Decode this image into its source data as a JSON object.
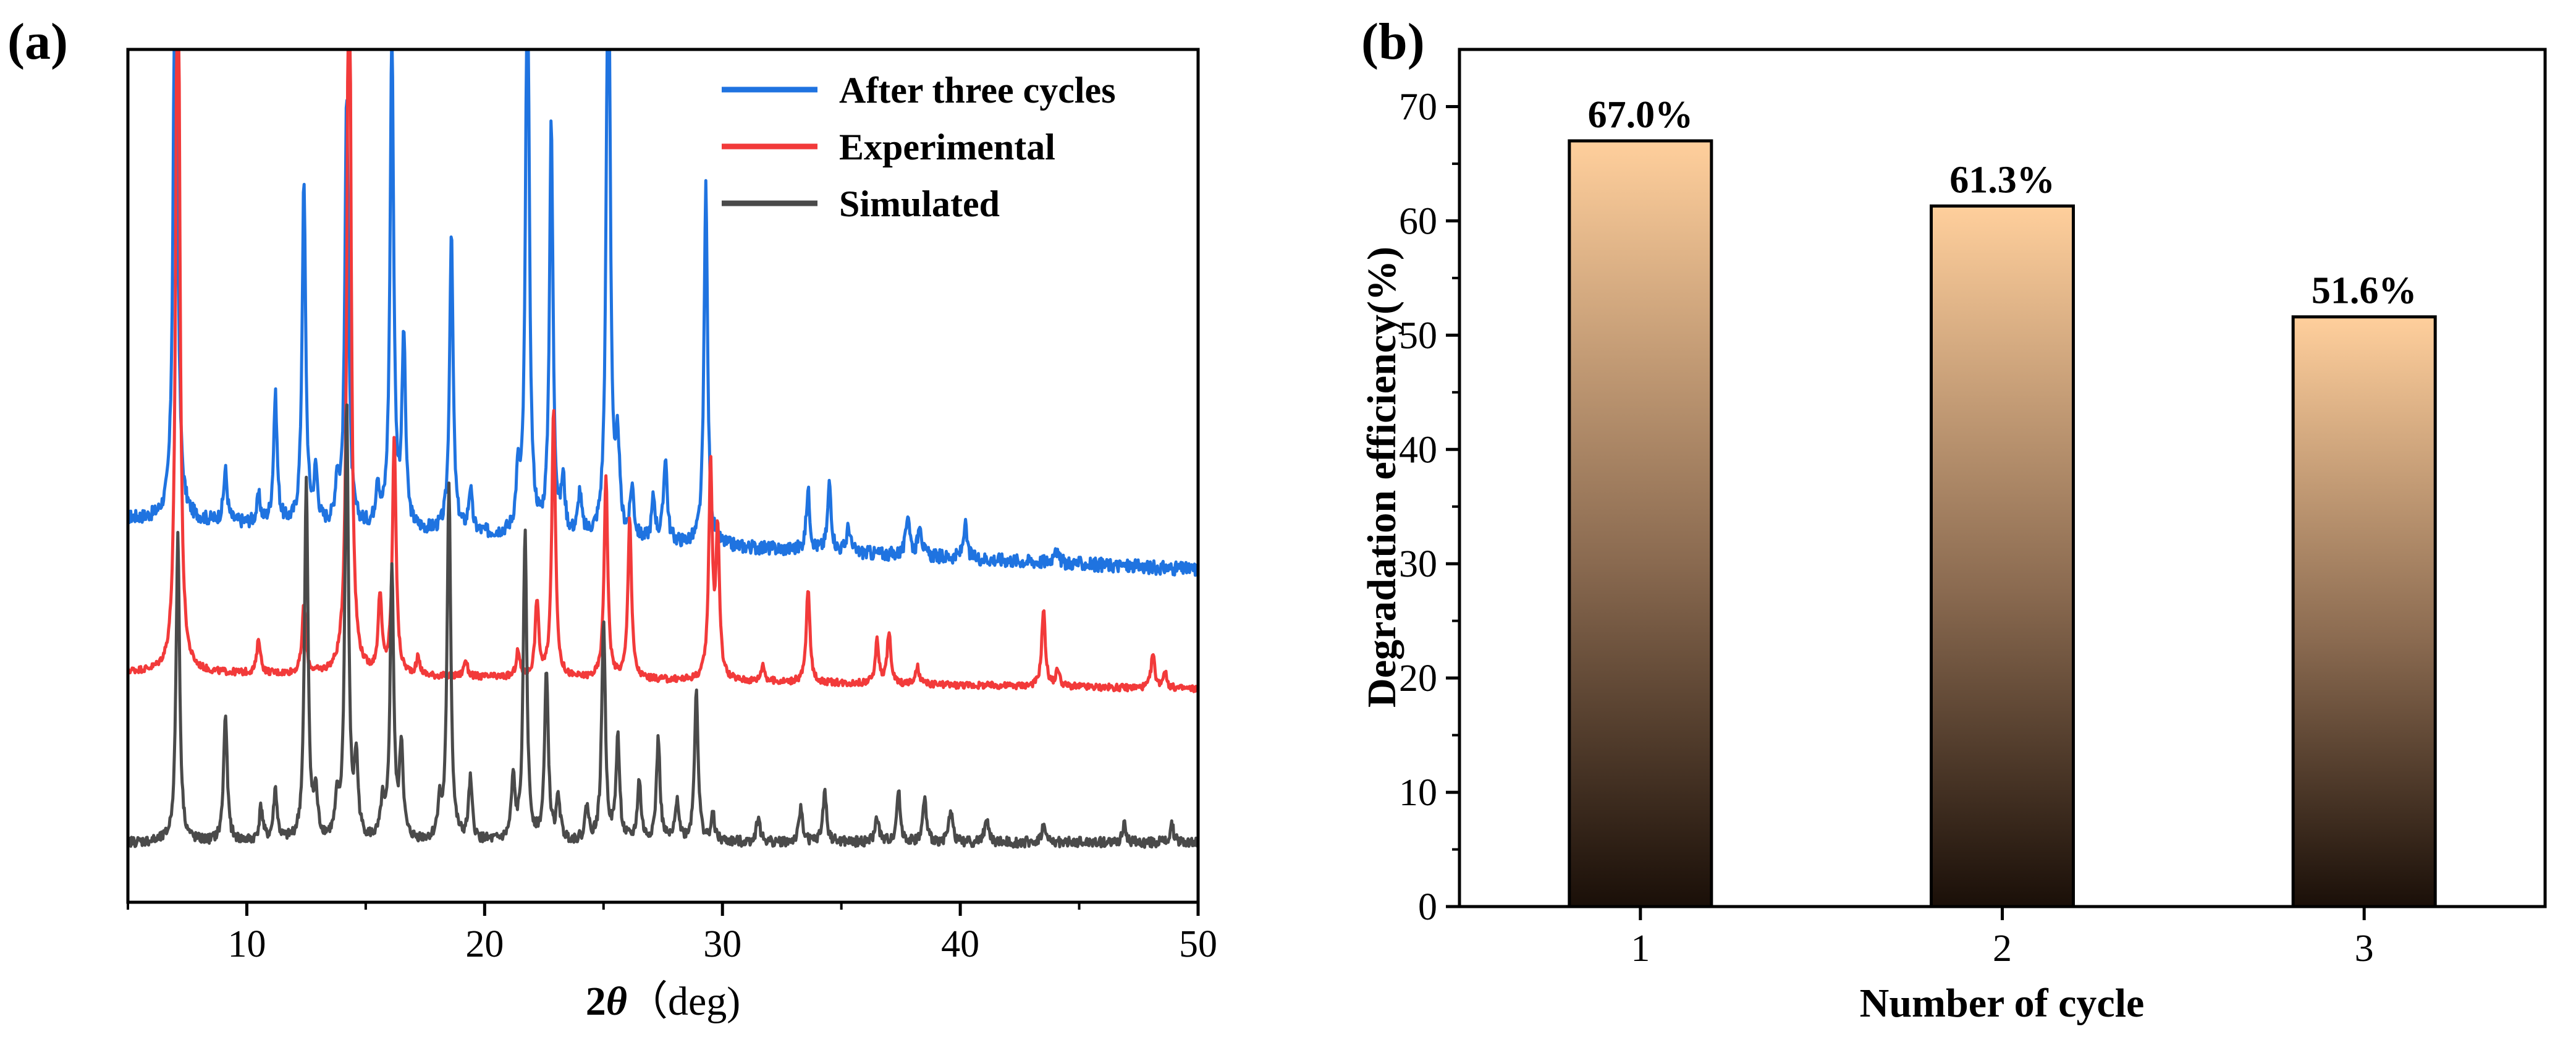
{
  "colors": {
    "after_three_cycles": "#1f73e0",
    "experimental": "#f23a3a",
    "simulated": "#4a4a4a",
    "bar_top": "#ffcf9c",
    "bar_bottom": "#1a0f08",
    "axis": "#000000"
  },
  "chart_data": [
    {
      "panel": "(a)",
      "type": "line",
      "title": "",
      "xlabel_prefix": "2",
      "xlabel_symbol": "θ",
      "xlabel_suffix": "（deg)",
      "ylabel": "",
      "xlim": [
        5,
        50
      ],
      "xticks": [
        10,
        20,
        30,
        40,
        50
      ],
      "yticks_shown": false,
      "legend_position": "top-right",
      "series": [
        {
          "name": "After three cycles",
          "baseline": 0.45,
          "baseline_end": 0.39,
          "noise": 0.008,
          "peaks": [
            [
              7.0,
              0.86
            ],
            [
              9.1,
              0.06
            ],
            [
              10.5,
              0.03
            ],
            [
              11.2,
              0.15
            ],
            [
              12.4,
              0.4
            ],
            [
              12.9,
              0.06
            ],
            [
              13.8,
              0.05
            ],
            [
              14.2,
              0.51
            ],
            [
              15.5,
              0.05
            ],
            [
              16.1,
              0.58
            ],
            [
              16.6,
              0.22
            ],
            [
              18.6,
              0.35
            ],
            [
              19.4,
              0.05
            ],
            [
              21.4,
              0.06
            ],
            [
              21.8,
              0.71
            ],
            [
              22.8,
              0.48
            ],
            [
              23.3,
              0.06
            ],
            [
              24.0,
              0.05
            ],
            [
              25.2,
              0.81
            ],
            [
              25.6,
              0.1
            ],
            [
              26.2,
              0.06
            ],
            [
              27.1,
              0.05
            ],
            [
              27.6,
              0.1
            ],
            [
              29.3,
              0.42
            ],
            [
              33.6,
              0.07
            ],
            [
              34.5,
              0.08
            ],
            [
              35.3,
              0.03
            ],
            [
              37.8,
              0.05
            ],
            [
              38.3,
              0.04
            ],
            [
              40.2,
              0.04
            ],
            [
              44.0,
              0.02
            ]
          ]
        },
        {
          "name": "Experimental",
          "baseline": 0.27,
          "baseline_end": 0.25,
          "noise": 0.004,
          "peaks": [
            [
              7.1,
              1.0
            ],
            [
              10.5,
              0.04
            ],
            [
              12.4,
              0.08
            ],
            [
              14.3,
              1.0
            ],
            [
              15.6,
              0.09
            ],
            [
              16.2,
              0.28
            ],
            [
              17.2,
              0.02
            ],
            [
              19.2,
              0.02
            ],
            [
              21.4,
              0.03
            ],
            [
              22.2,
              0.09
            ],
            [
              22.9,
              0.32
            ],
            [
              25.1,
              0.24
            ],
            [
              26.1,
              0.19
            ],
            [
              29.5,
              0.25
            ],
            [
              29.8,
              0.17
            ],
            [
              31.7,
              0.02
            ],
            [
              33.6,
              0.11
            ],
            [
              36.5,
              0.05
            ],
            [
              37.0,
              0.06
            ],
            [
              38.2,
              0.02
            ],
            [
              43.5,
              0.09
            ],
            [
              44.1,
              0.02
            ],
            [
              48.1,
              0.04
            ],
            [
              48.6,
              0.02
            ]
          ]
        },
        {
          "name": "Simulated",
          "baseline": 0.07,
          "baseline_end": 0.07,
          "noise": 0.006,
          "peaks": [
            [
              7.1,
              0.36
            ],
            [
              9.1,
              0.15
            ],
            [
              10.6,
              0.04
            ],
            [
              11.2,
              0.06
            ],
            [
              12.5,
              0.42
            ],
            [
              12.9,
              0.05
            ],
            [
              13.8,
              0.04
            ],
            [
              14.2,
              0.51
            ],
            [
              14.6,
              0.09
            ],
            [
              15.7,
              0.04
            ],
            [
              16.1,
              0.32
            ],
            [
              16.5,
              0.11
            ],
            [
              18.1,
              0.04
            ],
            [
              18.5,
              0.42
            ],
            [
              19.4,
              0.07
            ],
            [
              21.2,
              0.07
            ],
            [
              21.7,
              0.36
            ],
            [
              22.6,
              0.2
            ],
            [
              23.1,
              0.05
            ],
            [
              24.3,
              0.04
            ],
            [
              25.0,
              0.26
            ],
            [
              25.6,
              0.12
            ],
            [
              26.5,
              0.07
            ],
            [
              27.3,
              0.12
            ],
            [
              28.1,
              0.05
            ],
            [
              28.9,
              0.18
            ],
            [
              29.6,
              0.03
            ],
            [
              31.5,
              0.03
            ],
            [
              33.3,
              0.04
            ],
            [
              34.3,
              0.06
            ],
            [
              36.5,
              0.03
            ],
            [
              37.4,
              0.06
            ],
            [
              38.5,
              0.05
            ],
            [
              39.6,
              0.04
            ],
            [
              41.1,
              0.03
            ],
            [
              43.5,
              0.02
            ],
            [
              46.9,
              0.02
            ],
            [
              48.9,
              0.02
            ]
          ]
        }
      ]
    },
    {
      "panel": "(b)",
      "type": "bar",
      "title": "",
      "xlabel": "Number of cycle",
      "ylabel": "Degradation efficiency(%)",
      "categories": [
        "1",
        "2",
        "3"
      ],
      "values": [
        67.0,
        61.3,
        51.6
      ],
      "value_labels": [
        "67.0%",
        "61.3%",
        "51.6%"
      ],
      "ylim": [
        0,
        75
      ],
      "yticks": [
        0,
        10,
        20,
        30,
        40,
        50,
        60,
        70
      ]
    }
  ]
}
